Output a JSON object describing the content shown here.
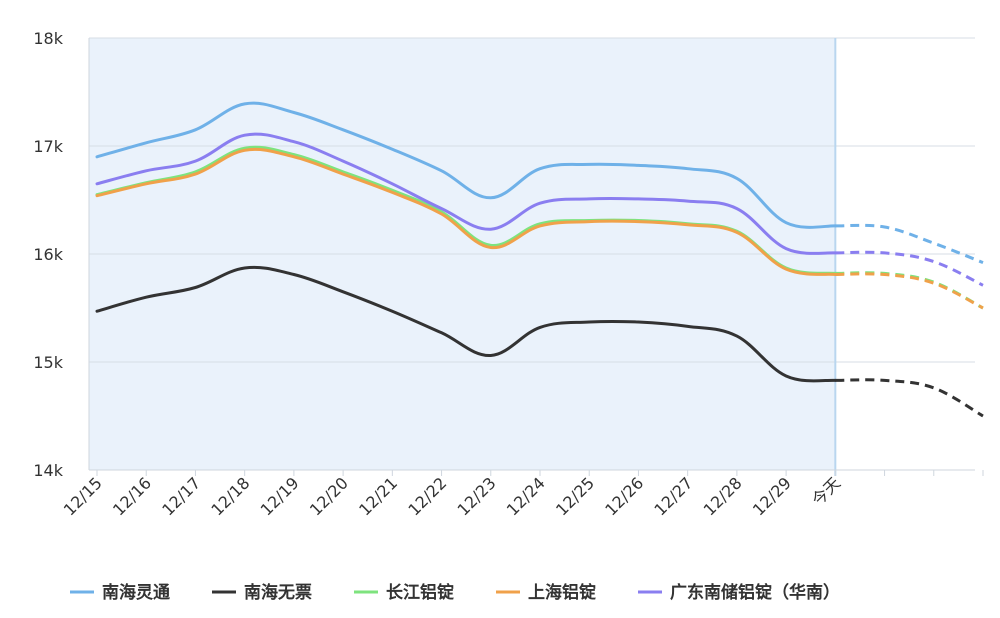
{
  "chart_data": {
    "type": "line",
    "categories": [
      "12/15",
      "12/16",
      "12/17",
      "12/18",
      "12/19",
      "12/20",
      "12/21",
      "12/22",
      "12/23",
      "12/24",
      "12/25",
      "12/26",
      "12/27",
      "12/28",
      "12/29",
      "今天"
    ],
    "forecast_points": 3,
    "y_ticks": [
      {
        "value": 18000,
        "label": "18k"
      },
      {
        "value": 17000,
        "label": "17k"
      },
      {
        "value": 16000,
        "label": "16k"
      },
      {
        "value": 15000,
        "label": "15k"
      },
      {
        "value": 14000,
        "label": "14k"
      }
    ],
    "ylim": [
      14000,
      18000
    ],
    "grid": true,
    "legend_position": "bottom",
    "series": [
      {
        "name": "南海灵通",
        "color": "#6fb1e8",
        "values": [
          16900,
          17030,
          17150,
          17390,
          17310,
          17150,
          16970,
          16770,
          16520,
          16790,
          16830,
          16820,
          16790,
          16700,
          16290,
          16260
        ],
        "forecast": [
          16250,
          16100,
          15920
        ]
      },
      {
        "name": "南海无票",
        "color": "#333333",
        "values": [
          15470,
          15600,
          15690,
          15870,
          15810,
          15650,
          15470,
          15270,
          15060,
          15320,
          15370,
          15370,
          15330,
          15240,
          14870,
          14830
        ],
        "forecast": [
          14830,
          14760,
          14500
        ]
      },
      {
        "name": "长江铝锭",
        "color": "#7ee37e",
        "values": [
          16550,
          16660,
          16760,
          16980,
          16920,
          16760,
          16590,
          16390,
          16080,
          16280,
          16310,
          16310,
          16280,
          16210,
          15870,
          15820
        ],
        "forecast": [
          15820,
          15740,
          15500
        ]
      },
      {
        "name": "上海铝锭",
        "color": "#f0a14a",
        "values": [
          16540,
          16650,
          16740,
          16960,
          16900,
          16740,
          16570,
          16370,
          16060,
          16260,
          16300,
          16300,
          16270,
          16200,
          15860,
          15810
        ],
        "forecast": [
          15810,
          15730,
          15500
        ]
      },
      {
        "name": "广东南储铝锭（华南）",
        "color": "#8a7ef0",
        "values": [
          16650,
          16770,
          16860,
          17100,
          17040,
          16860,
          16650,
          16420,
          16230,
          16470,
          16510,
          16510,
          16490,
          16420,
          16050,
          16010
        ],
        "forecast": [
          16010,
          15930,
          15710
        ]
      }
    ]
  }
}
